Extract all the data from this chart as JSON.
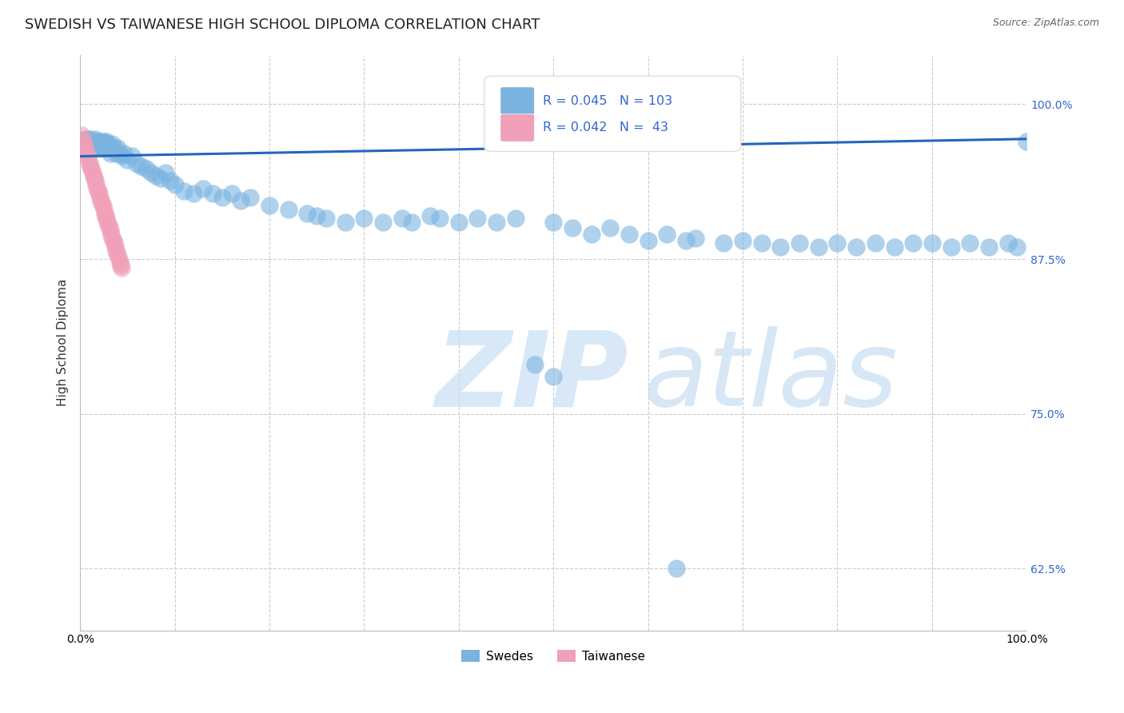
{
  "title": "SWEDISH VS TAIWANESE HIGH SCHOOL DIPLOMA CORRELATION CHART",
  "source": "Source: ZipAtlas.com",
  "ylabel": "High School Diploma",
  "blue_color": "#7AB3E0",
  "pink_color": "#F0A0B8",
  "trendline_color": "#2266BB",
  "R_blue": "0.045",
  "N_blue": "103",
  "R_pink": "0.042",
  "N_pink": " 43",
  "legend_labels": [
    "Swedes",
    "Taiwanese"
  ],
  "background_color": "#FFFFFF",
  "grid_color": "#CCCCCC",
  "title_fontsize": 13,
  "axis_label_fontsize": 11,
  "tick_fontsize": 10,
  "watermark_color": "#D0E8F8",
  "ytick_color": "#3366CC",
  "xlim": [
    0.0,
    1.0
  ],
  "ylim": [
    0.575,
    1.04
  ],
  "yticks": [
    0.625,
    0.75,
    0.875,
    1.0
  ],
  "ytick_labels": [
    "62.5%",
    "75.0%",
    "87.5%",
    "100.0%"
  ],
  "xticks": [
    0.0,
    0.1,
    0.2,
    0.3,
    0.4,
    0.5,
    0.6,
    0.7,
    0.8,
    0.9,
    1.0
  ],
  "xtick_labels": [
    "0.0%",
    "",
    "",
    "",
    "",
    "",
    "",
    "",
    "",
    "",
    "100.0%"
  ],
  "swedes_x": [
    0.004,
    0.005,
    0.006,
    0.007,
    0.008,
    0.009,
    0.01,
    0.011,
    0.012,
    0.013,
    0.014,
    0.015,
    0.016,
    0.017,
    0.018,
    0.019,
    0.02,
    0.021,
    0.022,
    0.023,
    0.024,
    0.025,
    0.026,
    0.027,
    0.028,
    0.029,
    0.03,
    0.032,
    0.034,
    0.036,
    0.038,
    0.04,
    0.042,
    0.044,
    0.046,
    0.05,
    0.055,
    0.06,
    0.065,
    0.07,
    0.075,
    0.08,
    0.085,
    0.09,
    0.095,
    0.1,
    0.11,
    0.12,
    0.13,
    0.14,
    0.15,
    0.16,
    0.17,
    0.18,
    0.2,
    0.22,
    0.24,
    0.25,
    0.26,
    0.28,
    0.3,
    0.32,
    0.34,
    0.35,
    0.37,
    0.38,
    0.4,
    0.42,
    0.44,
    0.46,
    0.5,
    0.52,
    0.54,
    0.56,
    0.58,
    0.6,
    0.62,
    0.64,
    0.65,
    0.68,
    0.7,
    0.72,
    0.74,
    0.76,
    0.78,
    0.8,
    0.82,
    0.84,
    0.86,
    0.88,
    0.9,
    0.92,
    0.94,
    0.96,
    0.98,
    0.99,
    1.0,
    0.63,
    0.48,
    0.5,
    0.005,
    0.008,
    0.01
  ],
  "swedes_y": [
    0.97,
    0.968,
    0.972,
    0.968,
    0.965,
    0.97,
    0.968,
    0.972,
    0.965,
    0.97,
    0.968,
    0.965,
    0.972,
    0.968,
    0.965,
    0.97,
    0.968,
    0.965,
    0.97,
    0.968,
    0.965,
    0.97,
    0.968,
    0.965,
    0.97,
    0.968,
    0.965,
    0.96,
    0.968,
    0.965,
    0.96,
    0.965,
    0.96,
    0.958,
    0.96,
    0.955,
    0.958,
    0.952,
    0.95,
    0.948,
    0.945,
    0.942,
    0.94,
    0.945,
    0.938,
    0.935,
    0.93,
    0.928,
    0.932,
    0.928,
    0.925,
    0.928,
    0.922,
    0.925,
    0.918,
    0.915,
    0.912,
    0.91,
    0.908,
    0.905,
    0.908,
    0.905,
    0.908,
    0.905,
    0.91,
    0.908,
    0.905,
    0.908,
    0.905,
    0.908,
    0.905,
    0.9,
    0.895,
    0.9,
    0.895,
    0.89,
    0.895,
    0.89,
    0.892,
    0.888,
    0.89,
    0.888,
    0.885,
    0.888,
    0.885,
    0.888,
    0.885,
    0.888,
    0.885,
    0.888,
    0.888,
    0.885,
    0.888,
    0.885,
    0.888,
    0.885,
    0.97,
    0.625,
    0.79,
    0.78,
    0.97,
    0.972,
    0.968
  ],
  "taiwanese_x": [
    0.002,
    0.003,
    0.004,
    0.005,
    0.006,
    0.007,
    0.008,
    0.009,
    0.01,
    0.011,
    0.012,
    0.013,
    0.014,
    0.015,
    0.016,
    0.017,
    0.018,
    0.019,
    0.02,
    0.021,
    0.022,
    0.023,
    0.024,
    0.025,
    0.026,
    0.027,
    0.028,
    0.029,
    0.03,
    0.031,
    0.032,
    0.033,
    0.034,
    0.035,
    0.036,
    0.037,
    0.038,
    0.039,
    0.04,
    0.041,
    0.042,
    0.043,
    0.044
  ],
  "taiwanese_y": [
    0.975,
    0.97,
    0.968,
    0.965,
    0.962,
    0.96,
    0.958,
    0.955,
    0.952,
    0.95,
    0.948,
    0.945,
    0.942,
    0.94,
    0.938,
    0.935,
    0.932,
    0.93,
    0.928,
    0.925,
    0.922,
    0.92,
    0.918,
    0.915,
    0.912,
    0.91,
    0.908,
    0.905,
    0.902,
    0.9,
    0.898,
    0.895,
    0.892,
    0.89,
    0.888,
    0.885,
    0.882,
    0.88,
    0.878,
    0.875,
    0.872,
    0.87,
    0.868
  ],
  "trend_x": [
    0.0,
    1.0
  ],
  "trend_y": [
    0.958,
    0.972
  ]
}
